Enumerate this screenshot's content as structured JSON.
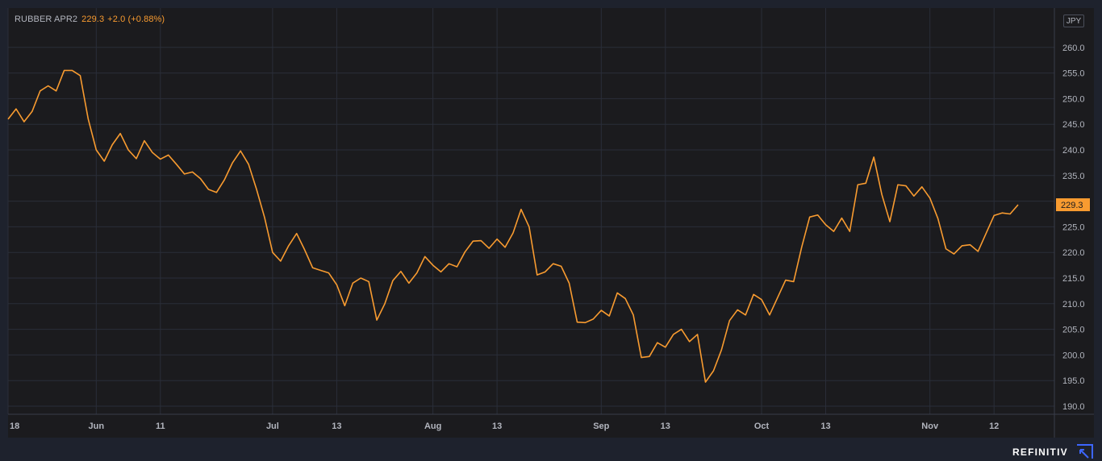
{
  "legend": {
    "symbol": "RUBBER APR2",
    "price": "229.3",
    "change": "+2.0 (+0.88%)"
  },
  "currency": "JPY",
  "brand": "REFINITIV",
  "colors": {
    "background": "#1e222d",
    "plot_background": "#1b1b1e",
    "grid": "#2a2e39",
    "line": "#f89b30",
    "axis_text": "#b2b5be",
    "last_price_label_bg": "#f89b30"
  },
  "chart_data": {
    "type": "line",
    "title": "RUBBER APR2",
    "last_price": 229.3,
    "ylim": [
      187,
      264
    ],
    "y_ticks": [
      190,
      195,
      200,
      205,
      210,
      215,
      220,
      225,
      230,
      235,
      240,
      245,
      250,
      255,
      260
    ],
    "y_tick_labels": [
      "190.0",
      "195.0",
      "200.0",
      "205.0",
      "210.0",
      "215.0",
      "220.0",
      "225.0",
      "",
      "235.0",
      "240.0",
      "245.0",
      "250.0",
      "255.0",
      "260.0"
    ],
    "x_tick_labels": [
      "18",
      "Jun",
      "11",
      "Jul",
      "13",
      "Aug",
      "13",
      "Sep",
      "13",
      "Oct",
      "13",
      "Nov",
      "12"
    ],
    "x_tick_index": [
      0,
      11,
      19,
      33,
      41,
      53,
      61,
      74,
      82,
      94,
      102,
      115,
      123
    ],
    "grid": true,
    "series": [
      {
        "color": "#f89b30",
        "values": [
          246.0,
          248.0,
          245.5,
          247.5,
          251.5,
          252.5,
          251.5,
          255.5,
          255.5,
          254.5,
          246.0,
          240.0,
          237.8,
          241.0,
          243.2,
          240.0,
          238.3,
          241.8,
          239.5,
          238.2,
          239.0,
          237.2,
          235.3,
          235.7,
          234.4,
          232.3,
          231.7,
          234.2,
          237.5,
          239.8,
          237.2,
          232.3,
          226.8,
          220.0,
          218.3,
          221.3,
          223.7,
          220.5,
          217.0,
          216.5,
          216.0,
          213.7,
          209.6,
          214.0,
          215.0,
          214.3,
          206.8,
          210.0,
          214.5,
          216.3,
          214.0,
          216.0,
          219.2,
          217.5,
          216.2,
          217.8,
          217.2,
          220.1,
          222.2,
          222.3,
          220.8,
          222.6,
          221.0,
          223.8,
          228.4,
          225.0,
          215.6,
          216.2,
          217.8,
          217.3,
          214.0,
          206.4,
          206.3,
          207.0,
          208.7,
          207.6,
          212.1,
          211.0,
          207.8,
          199.5,
          199.7,
          202.4,
          201.5,
          204.0,
          205.0,
          202.6,
          204.0,
          194.7,
          196.9,
          201.0,
          206.7,
          208.8,
          207.8,
          211.8,
          210.8,
          207.8,
          211.2,
          214.6,
          214.3,
          221.0,
          226.9,
          227.3,
          225.4,
          224.1,
          226.7,
          224.1,
          233.2,
          233.5,
          238.6,
          231.3,
          226.0,
          233.2,
          233.0,
          231.0,
          232.8,
          230.6,
          226.6,
          220.7,
          219.7,
          221.3,
          221.5,
          220.2,
          223.7,
          227.2,
          227.7,
          227.5,
          229.3
        ]
      }
    ]
  }
}
